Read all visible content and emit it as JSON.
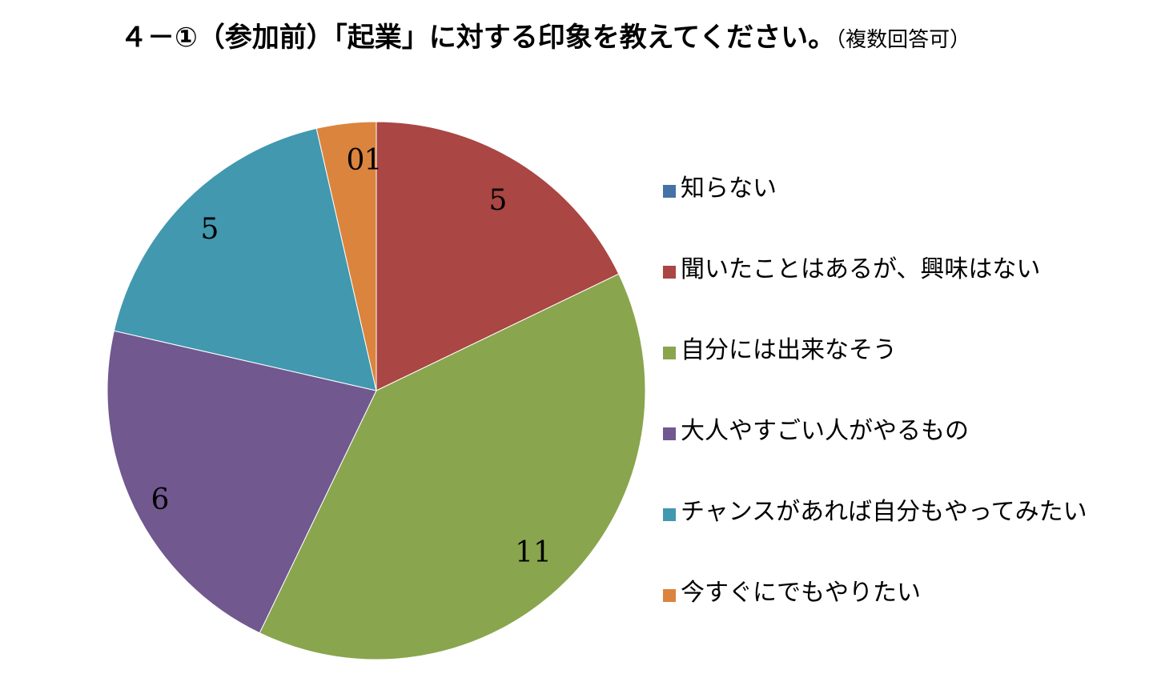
{
  "chart_data": {
    "type": "pie",
    "title": "４－①（参加前）「起業」に対する印象を教えてください。",
    "title_note": "（複数回答可）",
    "categories": [
      "知らない",
      "聞いたことはあるが、興味はない",
      "自分には出来なそう",
      "大人やすごい人がやるもの",
      "チャンスがあれば自分もやってみたい",
      "今すぐにでもやりたい"
    ],
    "values": [
      0,
      5,
      11,
      6,
      5,
      1
    ],
    "data_labels": [
      "0",
      "5",
      "11",
      "6",
      "5",
      "1"
    ],
    "colors": [
      "#4572A7",
      "#AA4643",
      "#89A54E",
      "#71588F",
      "#4198AF",
      "#DB843D"
    ],
    "legend_position": "right"
  }
}
